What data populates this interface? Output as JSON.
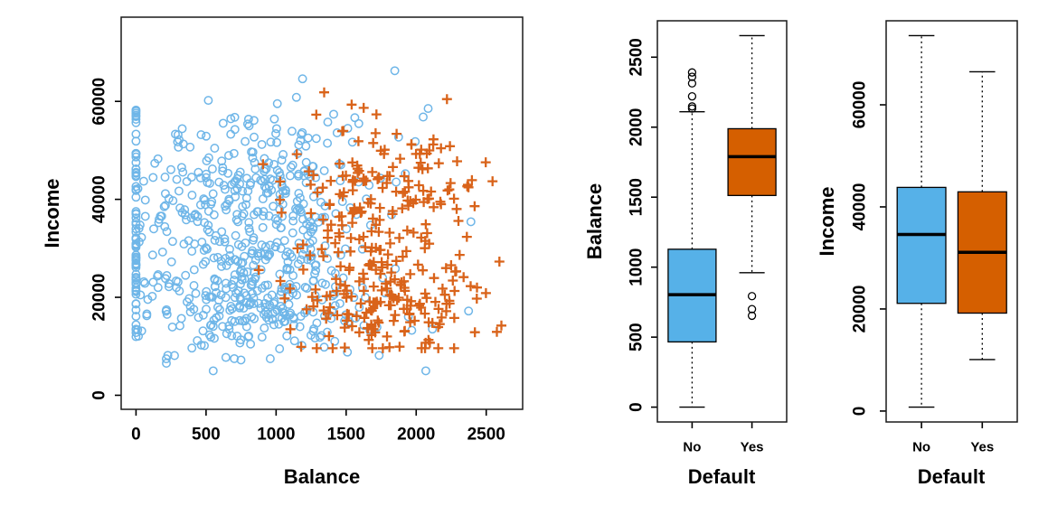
{
  "figure": {
    "background": "#ffffff",
    "description": "Credit Default data: scatter plot of Income vs Balance (blue circles = no default, orange plus = default) with boxplots of Balance and Income grouped by default status"
  },
  "colors": {
    "no_default_marker": "#6FB6E8",
    "default_marker": "#D9631A",
    "no_default_box_fill": "#56B1E8",
    "default_box_fill": "#D55F00",
    "axis": "#000000"
  },
  "chart_data": [
    {
      "type": "scatter",
      "title": "",
      "xlabel": "Balance",
      "ylabel": "Income",
      "xticks": [
        0,
        500,
        1000,
        1500,
        2000,
        2500
      ],
      "yticks": [
        0,
        20000,
        40000,
        60000
      ],
      "xlim": [
        -106,
        2760
      ],
      "ylim": [
        -2867,
        77193
      ],
      "grid": false,
      "legend": "none",
      "points_are_estimated": true,
      "seed": 1337,
      "series": [
        {
          "name": "No default",
          "marker": "circle",
          "color": "#6FB6E8",
          "n": 700,
          "x_dist": {
            "type": "normal_spike_tail",
            "mean": 790,
            "sd": 430,
            "min": 0,
            "max": 2391,
            "zero_fraction": 0.07,
            "tail_fraction": 0.03,
            "tail_mean": 1600,
            "tail_sd": 380
          },
          "y_dist": {
            "type": "mixture",
            "min": 5000,
            "max": 73500,
            "components": [
              {
                "weight": 0.43,
                "mean": 19800,
                "sd": 5800
              },
              {
                "weight": 0.57,
                "mean": 40500,
                "sd": 8600
              }
            ]
          }
        },
        {
          "name": "Defaulted",
          "marker": "plus",
          "color": "#D9631A",
          "n": 333,
          "x_dist": {
            "type": "normal",
            "mean": 1745,
            "sd": 330,
            "min": 653,
            "max": 2654
          },
          "y_dist": {
            "type": "mixture",
            "min": 9600,
            "max": 66500,
            "components": [
              {
                "weight": 0.45,
                "mean": 19300,
                "sd": 5500
              },
              {
                "weight": 0.55,
                "mean": 40200,
                "sd": 9200
              }
            ]
          }
        }
      ]
    },
    {
      "type": "boxplot",
      "title": "",
      "xlabel": "Default",
      "ylabel": "Balance",
      "categories": [
        "No",
        "Yes"
      ],
      "yticks": [
        0,
        500,
        1000,
        1500,
        2000,
        2500
      ],
      "ylim": [
        -106,
        2760
      ],
      "stats": [
        {
          "category": "No",
          "color": "#56B1E8",
          "whislo": 0,
          "q1": 466,
          "med": 803,
          "q3": 1128,
          "whishi": 2110,
          "outliers": [
            2133,
            2148,
            2220,
            2313,
            2360,
            2391
          ]
        },
        {
          "category": "Yes",
          "color": "#D55F00",
          "whislo": 960,
          "q1": 1512,
          "med": 1789,
          "q3": 1989,
          "whishi": 2654,
          "outliers": [
            793,
            700,
            653
          ]
        }
      ]
    },
    {
      "type": "boxplot",
      "title": "",
      "xlabel": "Default",
      "ylabel": "Income",
      "categories": [
        "No",
        "Yes"
      ],
      "yticks": [
        0,
        20000,
        40000,
        60000
      ],
      "ylim": [
        -2139,
        76465
      ],
      "stats": [
        {
          "category": "No",
          "color": "#56B1E8",
          "whislo": 772,
          "q1": 21100,
          "med": 34590,
          "q3": 43820,
          "whishi": 73550,
          "outliers": []
        },
        {
          "category": "Yes",
          "color": "#D55F00",
          "whislo": 10090,
          "q1": 19190,
          "med": 31110,
          "q3": 42950,
          "whishi": 66470,
          "outliers": []
        }
      ]
    }
  ]
}
